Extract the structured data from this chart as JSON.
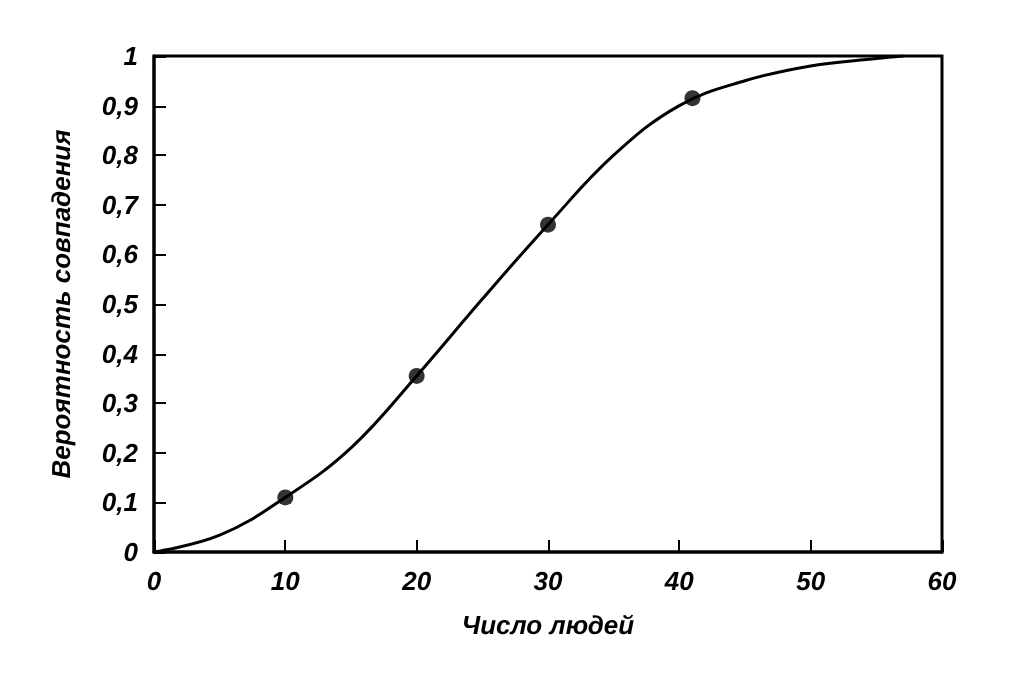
{
  "chart_data": {
    "type": "line",
    "xlabel": "Число людей",
    "ylabel": "Вероятность совпадения",
    "xlim": [
      0,
      60
    ],
    "xticks": [
      0,
      10,
      20,
      30,
      40,
      50,
      60
    ],
    "ylim": [
      0,
      1
    ],
    "yticks": [
      0,
      {
        "value": 0.1,
        "label": "0,1"
      },
      {
        "value": 0.2,
        "label": "0,2"
      },
      {
        "value": 0.3,
        "label": "0,3"
      },
      {
        "value": 0.4,
        "label": "0,4"
      },
      {
        "value": 0.5,
        "label": "0,5"
      },
      {
        "value": 0.6,
        "label": "0,6"
      },
      {
        "value": 0.7,
        "label": "0,7"
      },
      {
        "value": 0.8,
        "label": "0,8"
      },
      {
        "value": 0.9,
        "label": "0,9"
      },
      1
    ],
    "grid": false,
    "series": [
      {
        "color": "#000000",
        "marker": "none",
        "line_style": "solid",
        "x": [
          0,
          5,
          10,
          15,
          20,
          25,
          30,
          35,
          40,
          45,
          50,
          55,
          57
        ],
        "values": [
          0,
          0.034,
          0.11,
          0.21,
          0.355,
          0.51,
          0.66,
          0.8,
          0.9,
          0.95,
          0.98,
          0.995,
          1
        ]
      },
      {
        "type": "scatter",
        "color": "#000000",
        "marker": "circle",
        "x": [
          10,
          20,
          30,
          41
        ],
        "values": [
          0.11,
          0.355,
          0.66,
          0.915
        ]
      }
    ]
  }
}
